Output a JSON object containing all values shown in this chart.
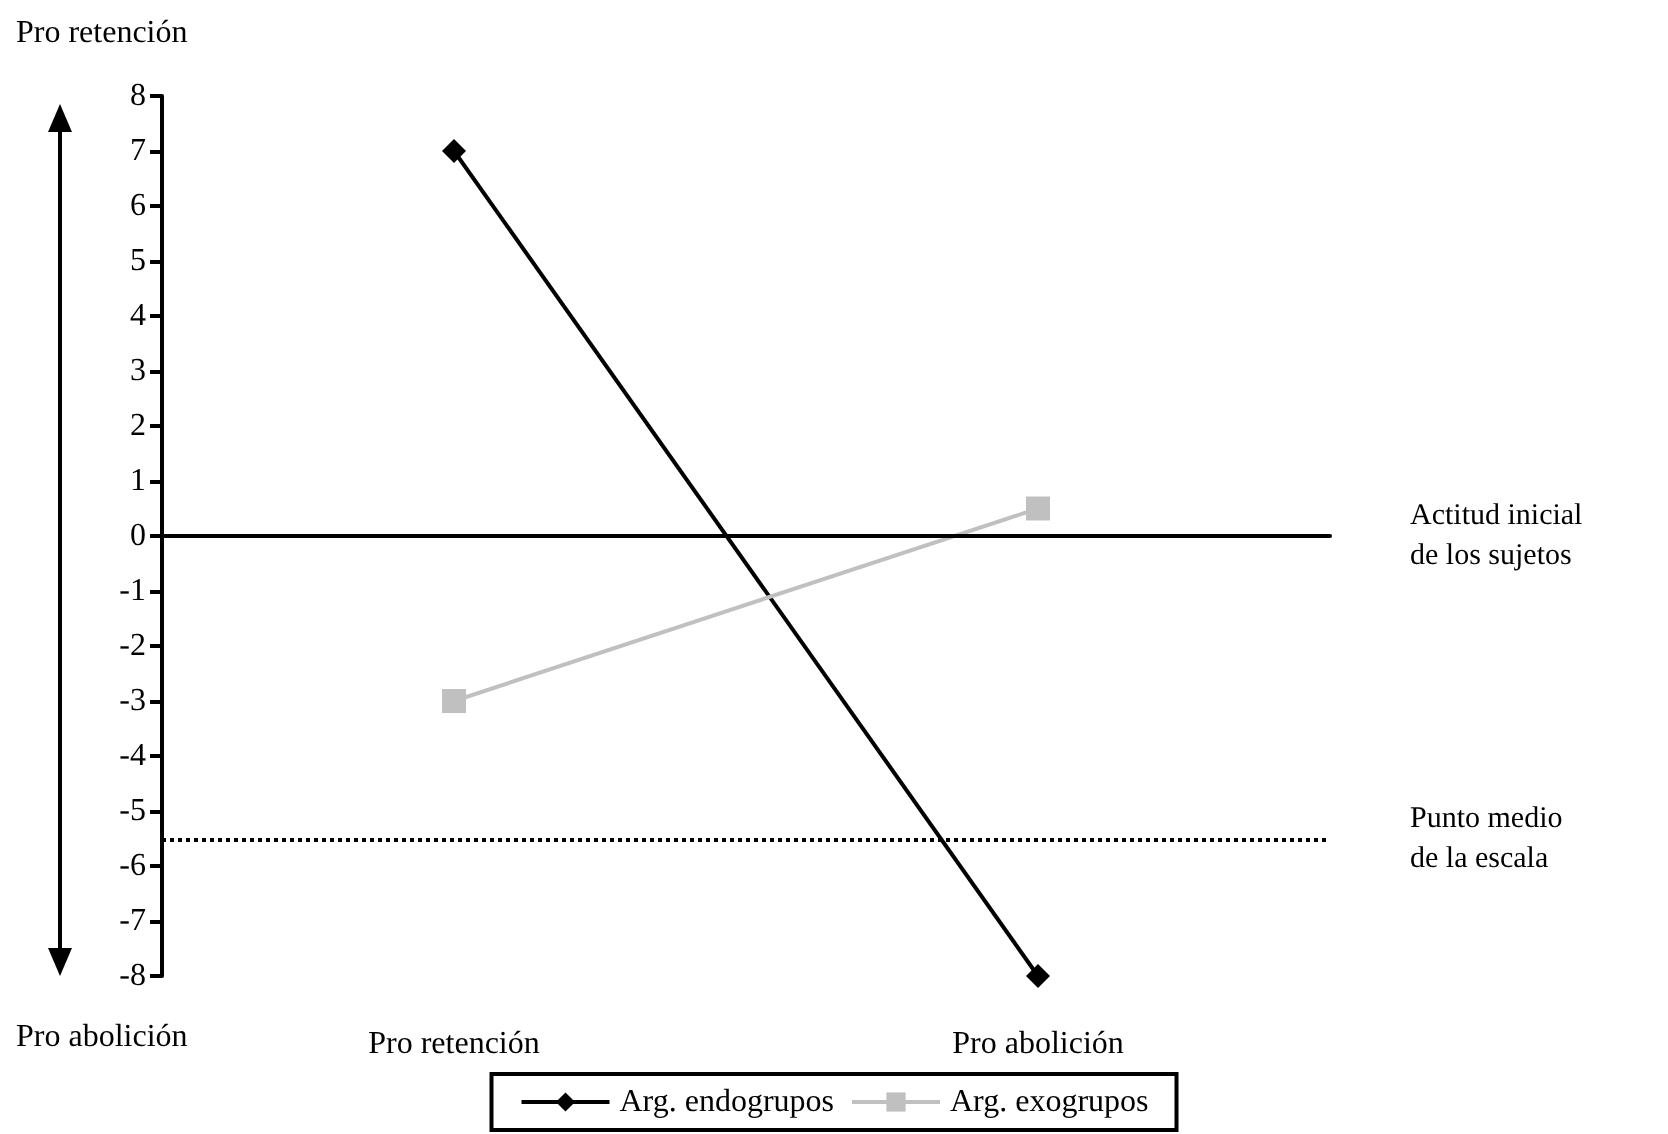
{
  "chart_data": {
    "type": "line",
    "categories": [
      "Pro retención",
      "Pro abolición"
    ],
    "series": [
      {
        "name": "Arg. endogrupos",
        "color": "#000000",
        "marker": "diamond",
        "values": [
          7,
          -8
        ]
      },
      {
        "name": "Arg. exogrupos",
        "color": "#c0c0c0",
        "marker": "square",
        "values": [
          -3,
          0.5
        ]
      }
    ],
    "ylim": [
      -8,
      8
    ],
    "yticks": [
      -8,
      -7,
      -6,
      -5,
      -4,
      -3,
      -2,
      -1,
      0,
      1,
      2,
      3,
      4,
      5,
      6,
      7,
      8
    ],
    "ref_lines": [
      {
        "axis": "y",
        "value": 0,
        "label": "Actitud inicial\nde los sujetos",
        "line_style": "solid",
        "color": "#000000"
      },
      {
        "axis": "y",
        "value": -5.5,
        "label": "Punto medio\nde la escala",
        "line_style": "dotted",
        "color": "#000000"
      }
    ],
    "annotations": [
      "Pro retención",
      "Pro abolición"
    ],
    "grid": false,
    "legend": "bottom",
    "line_style": "solid"
  }
}
